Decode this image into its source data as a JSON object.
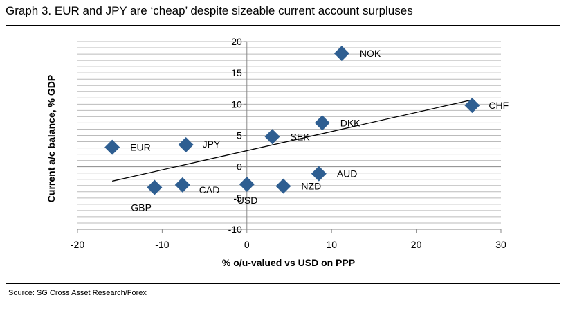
{
  "header": {
    "title": "Graph 3. EUR and JPY are ‘cheap’ despite sizeable current account surpluses"
  },
  "footer": {
    "source": "Source: SG Cross Asset Research/Forex"
  },
  "colors": {
    "marker": "#2E5E91",
    "gridline": "#BBBBBB",
    "axis": "#888888",
    "trend": "#000000"
  },
  "chart_data": {
    "type": "scatter",
    "title": "",
    "xlabel": "% o/u-valued vs USD on PPP",
    "ylabel": "Current a/c balance, % GDP",
    "xlim": [
      -20,
      30
    ],
    "ylim": [
      -10,
      20
    ],
    "xticks": [
      -20,
      -10,
      0,
      10,
      20,
      30
    ],
    "yticks": [
      -10,
      -5,
      0,
      5,
      10,
      15,
      20
    ],
    "x_tick_labels": [
      "-20",
      "-10",
      "0",
      "10",
      "20",
      "30"
    ],
    "y_tick_labels": [
      "-10",
      "-5",
      "0",
      "5",
      "10",
      "15",
      "20"
    ],
    "grid": "horizontal",
    "points": [
      {
        "label": "NOK",
        "x": 11.2,
        "y": 18.1
      },
      {
        "label": "CHF",
        "x": 26.6,
        "y": 9.8
      },
      {
        "label": "DKK",
        "x": 8.9,
        "y": 7.0
      },
      {
        "label": "SEK",
        "x": 3.0,
        "y": 4.8
      },
      {
        "label": "EUR",
        "x": -15.9,
        "y": 3.1
      },
      {
        "label": "JPY",
        "x": -7.2,
        "y": 3.5
      },
      {
        "label": "AUD",
        "x": 8.5,
        "y": -1.1
      },
      {
        "label": "NZD",
        "x": 4.3,
        "y": -3.1
      },
      {
        "label": "USD",
        "x": 0.0,
        "y": -2.8
      },
      {
        "label": "CAD",
        "x": -7.6,
        "y": -2.9
      },
      {
        "label": "GBP",
        "x": -10.9,
        "y": -3.3
      }
    ],
    "trendline": {
      "x": [
        -15.9,
        26.6
      ],
      "y": [
        -2.3,
        10.7
      ]
    }
  }
}
